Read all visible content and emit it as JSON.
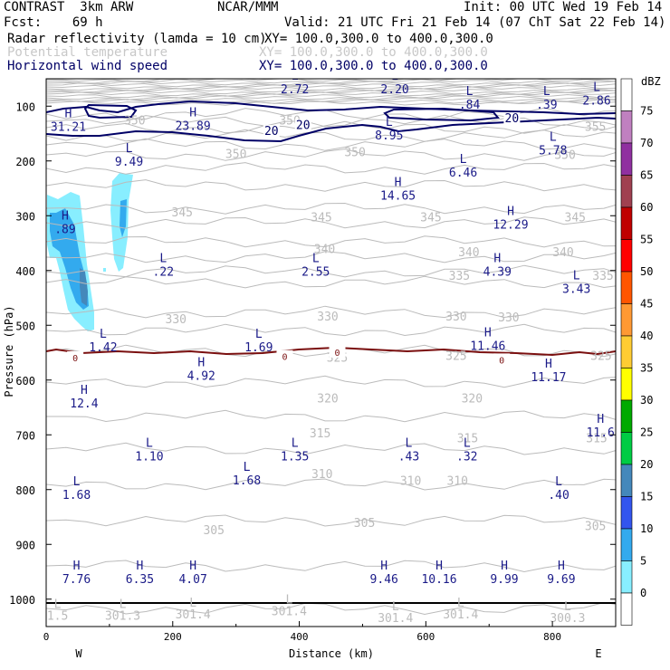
{
  "header": {
    "model": "CONTRAST  3km ARW",
    "org": "NCAR/MMM",
    "init": "Init: 00 UTC Wed 19 Feb 14",
    "fcst": "Fcst:    69 h",
    "valid": "Valid: 21 UTC Fri 21 Feb 14 (07 ChT Sat 22 Feb 14)",
    "fields": [
      {
        "name": "Radar reflectivity (lamda = 10 cm)",
        "xy": "XY= 100.0,300.0 to 400.0,300.0"
      },
      {
        "name": "Potential temperature",
        "xy": "XY= 100.0,300.0 to 400.0,300.0"
      },
      {
        "name": "Horizontal wind speed",
        "xy": "XY= 100.0,300.0 to 400.0,300.0"
      }
    ]
  },
  "chart_data": {
    "type": "cross-section",
    "xlabel": "Distance (km)",
    "ylabel": "Pressure (hPa)",
    "xlim": [
      0,
      900
    ],
    "ylim": [
      1050,
      50
    ],
    "x_ticks": [
      "0",
      "200",
      "400",
      "600",
      "800"
    ],
    "y_ticks": [
      "100",
      "200",
      "300",
      "400",
      "500",
      "600",
      "700",
      "800",
      "900",
      "1000"
    ],
    "x_end_labels": {
      "left": "W",
      "right": "E"
    },
    "colorbar": {
      "title": "dBZ",
      "levels": [
        "75",
        "70",
        "65",
        "60",
        "55",
        "50",
        "45",
        "40",
        "35",
        "30",
        "25",
        "20",
        "15",
        "10",
        "5",
        "0"
      ],
      "colors": [
        "#ffffff",
        "#c080c0",
        "#9030a0",
        "#a04050",
        "#c00000",
        "#ff0000",
        "#ff5500",
        "#ff9933",
        "#ffcc33",
        "#ffff00",
        "#00aa00",
        "#00cc44",
        "#4488bb",
        "#3355ee",
        "#33aaee",
        "#88eeff",
        "#ffffff"
      ]
    },
    "theta_labels": [
      {
        "text": "355",
        "x": 868,
        "p": 137
      },
      {
        "text": "350",
        "x": 140,
        "p": 125
      },
      {
        "text": "350",
        "x": 385,
        "p": 125
      },
      {
        "text": "350",
        "x": 300,
        "p": 186
      },
      {
        "text": "350",
        "x": 488,
        "p": 183
      },
      {
        "text": "350",
        "x": 820,
        "p": 188
      },
      {
        "text": "345",
        "x": 215,
        "p": 293
      },
      {
        "text": "345",
        "x": 435,
        "p": 302
      },
      {
        "text": "345",
        "x": 608,
        "p": 302
      },
      {
        "text": "345",
        "x": 836,
        "p": 302
      },
      {
        "text": "340",
        "x": 440,
        "p": 360
      },
      {
        "text": "340",
        "x": 668,
        "p": 366
      },
      {
        "text": "340",
        "x": 817,
        "p": 366
      },
      {
        "text": "335",
        "x": 653,
        "p": 409
      },
      {
        "text": "335",
        "x": 880,
        "p": 409
      },
      {
        "text": "330",
        "x": 205,
        "p": 488
      },
      {
        "text": "330",
        "x": 445,
        "p": 483
      },
      {
        "text": "330",
        "x": 648,
        "p": 483
      },
      {
        "text": "330",
        "x": 731,
        "p": 485
      },
      {
        "text": "325",
        "x": 460,
        "p": 558
      },
      {
        "text": "325",
        "x": 648,
        "p": 555
      },
      {
        "text": "325",
        "x": 877,
        "p": 555
      },
      {
        "text": "320",
        "x": 445,
        "p": 633
      },
      {
        "text": "320",
        "x": 673,
        "p": 633
      },
      {
        "text": "315",
        "x": 433,
        "p": 696
      },
      {
        "text": "315",
        "x": 666,
        "p": 705
      },
      {
        "text": "315",
        "x": 870,
        "p": 705
      },
      {
        "text": "310",
        "x": 436,
        "p": 771
      },
      {
        "text": "310",
        "x": 576,
        "p": 783
      },
      {
        "text": "310",
        "x": 650,
        "p": 783
      },
      {
        "text": "305",
        "x": 265,
        "p": 873
      },
      {
        "text": "305",
        "x": 503,
        "p": 860
      },
      {
        "text": "305",
        "x": 868,
        "p": 866
      }
    ],
    "wind_labels": [
      {
        "text": "20",
        "x": 356,
        "p": 146
      },
      {
        "text": "20",
        "x": 406,
        "p": 135
      },
      {
        "text": "20",
        "x": 736,
        "p": 123
      },
      {
        "text": "0",
        "x": 46,
        "p": 559
      },
      {
        "text": "0",
        "x": 377,
        "p": 557
      },
      {
        "text": "0",
        "x": 460,
        "p": 549
      },
      {
        "text": "0",
        "x": 720,
        "p": 563
      }
    ],
    "extrema": [
      {
        "type": "H",
        "value": "31.21",
        "x": 35,
        "p": 120
      },
      {
        "type": "H",
        "value": "23.89",
        "x": 232,
        "p": 119
      },
      {
        "type": "L",
        "value": "2.72",
        "x": 393,
        "p": 52
      },
      {
        "type": "L",
        "value": "2.20",
        "x": 551,
        "p": 52
      },
      {
        "type": "L",
        "value": ".84",
        "x": 669,
        "p": 80
      },
      {
        "type": "L",
        "value": ".39",
        "x": 791,
        "p": 80
      },
      {
        "type": "L",
        "value": "2.86",
        "x": 870,
        "p": 72
      },
      {
        "type": "L",
        "value": "8.95",
        "x": 542,
        "p": 136
      },
      {
        "type": "L",
        "value": "5.78",
        "x": 801,
        "p": 163
      },
      {
        "type": "L",
        "value": "9.49",
        "x": 131,
        "p": 184
      },
      {
        "type": "L",
        "value": "6.46",
        "x": 659,
        "p": 204
      },
      {
        "type": "H",
        "value": "14.65",
        "x": 556,
        "p": 246
      },
      {
        "type": "H",
        "value": "12.29",
        "x": 734,
        "p": 299
      },
      {
        "type": "H",
        "value": ".89",
        "x": 30,
        "p": 307
      },
      {
        "type": "L",
        "value": ".22",
        "x": 185,
        "p": 385
      },
      {
        "type": "L",
        "value": "2.55",
        "x": 426,
        "p": 385
      },
      {
        "type": "H",
        "value": "4.39",
        "x": 713,
        "p": 385
      },
      {
        "type": "L",
        "value": "3.43",
        "x": 838,
        "p": 416
      },
      {
        "type": "L",
        "value": "1.42",
        "x": 90,
        "p": 523
      },
      {
        "type": "L",
        "value": "1.69",
        "x": 336,
        "p": 523
      },
      {
        "type": "H",
        "value": "11.46",
        "x": 698,
        "p": 520
      },
      {
        "type": "H",
        "value": "4.92",
        "x": 245,
        "p": 575
      },
      {
        "type": "H",
        "value": "11.17",
        "x": 794,
        "p": 577
      },
      {
        "type": "H",
        "value": "12.4",
        "x": 60,
        "p": 625
      },
      {
        "type": "H",
        "value": "11.6",
        "x": 876,
        "p": 678
      },
      {
        "type": "L",
        "value": "1.10",
        "x": 163,
        "p": 722
      },
      {
        "type": "L",
        "value": "1.35",
        "x": 393,
        "p": 722
      },
      {
        "type": "L",
        "value": ".43",
        "x": 573,
        "p": 722
      },
      {
        "type": "L",
        "value": ".32",
        "x": 665,
        "p": 722
      },
      {
        "type": "L",
        "value": "1.68",
        "x": 317,
        "p": 766
      },
      {
        "type": "L",
        "value": "1.68",
        "x": 48,
        "p": 792
      },
      {
        "type": "L",
        "value": ".40",
        "x": 810,
        "p": 792
      },
      {
        "type": "H",
        "value": "7.76",
        "x": 48,
        "p": 946
      },
      {
        "type": "H",
        "value": "6.35",
        "x": 148,
        "p": 946
      },
      {
        "type": "H",
        "value": "4.07",
        "x": 232,
        "p": 946
      },
      {
        "type": "H",
        "value": "9.46",
        "x": 534,
        "p": 946
      },
      {
        "type": "H",
        "value": "10.16",
        "x": 621,
        "p": 946
      },
      {
        "type": "H",
        "value": "9.99",
        "x": 724,
        "p": 946
      },
      {
        "type": "H",
        "value": "9.69",
        "x": 814,
        "p": 946
      }
    ],
    "surface_labels": [
      {
        "type": "L",
        "value": "1.5",
        "x": 18,
        "p": 1016
      },
      {
        "type": "L",
        "value": "301.3",
        "x": 121,
        "p": 1016
      },
      {
        "type": "L",
        "value": "301.4",
        "x": 232,
        "p": 1014
      },
      {
        "type": "L",
        "value": "301.4",
        "x": 384,
        "p": 1008
      },
      {
        "type": "L",
        "value": "301.4",
        "x": 552,
        "p": 1020
      },
      {
        "type": "L",
        "value": "301.4",
        "x": 655,
        "p": 1014
      },
      {
        "type": "L",
        "value": "300.3",
        "x": 824,
        "p": 1020
      }
    ]
  }
}
